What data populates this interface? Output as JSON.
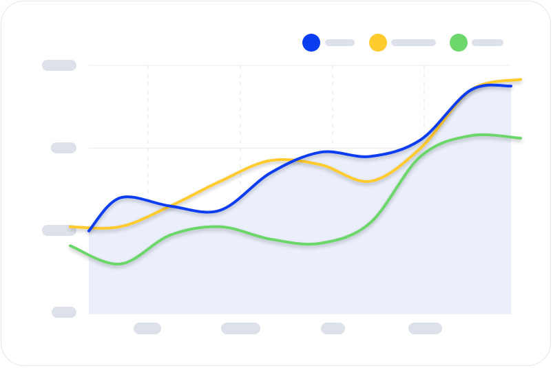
{
  "chart_data": {
    "type": "line",
    "smooth": true,
    "x": [
      0,
      1,
      2,
      3,
      4,
      5,
      6,
      7,
      8,
      9
    ],
    "xlim": [
      0,
      9
    ],
    "ylim": [
      0,
      3
    ],
    "grid": {
      "horizontal": true,
      "vertical": true,
      "vertical_style": "dashed"
    },
    "legend": {
      "position": "top-right"
    },
    "area_fill_color": "#eaeffb",
    "series": [
      {
        "color": "#0a3cf0",
        "values": [
          1.0,
          1.4,
          1.3,
          1.25,
          1.7,
          1.95,
          1.9,
          2.1,
          2.7,
          2.75
        ],
        "area": true
      },
      {
        "color": "#ffcb2e",
        "values": [
          1.05,
          1.05,
          1.3,
          1.6,
          1.85,
          1.8,
          1.6,
          2.0,
          2.7,
          2.83
        ]
      },
      {
        "color": "#6cd66a",
        "values": [
          0.82,
          0.6,
          0.95,
          1.05,
          0.9,
          0.85,
          1.1,
          1.9,
          2.15,
          2.12
        ]
      }
    ]
  }
}
